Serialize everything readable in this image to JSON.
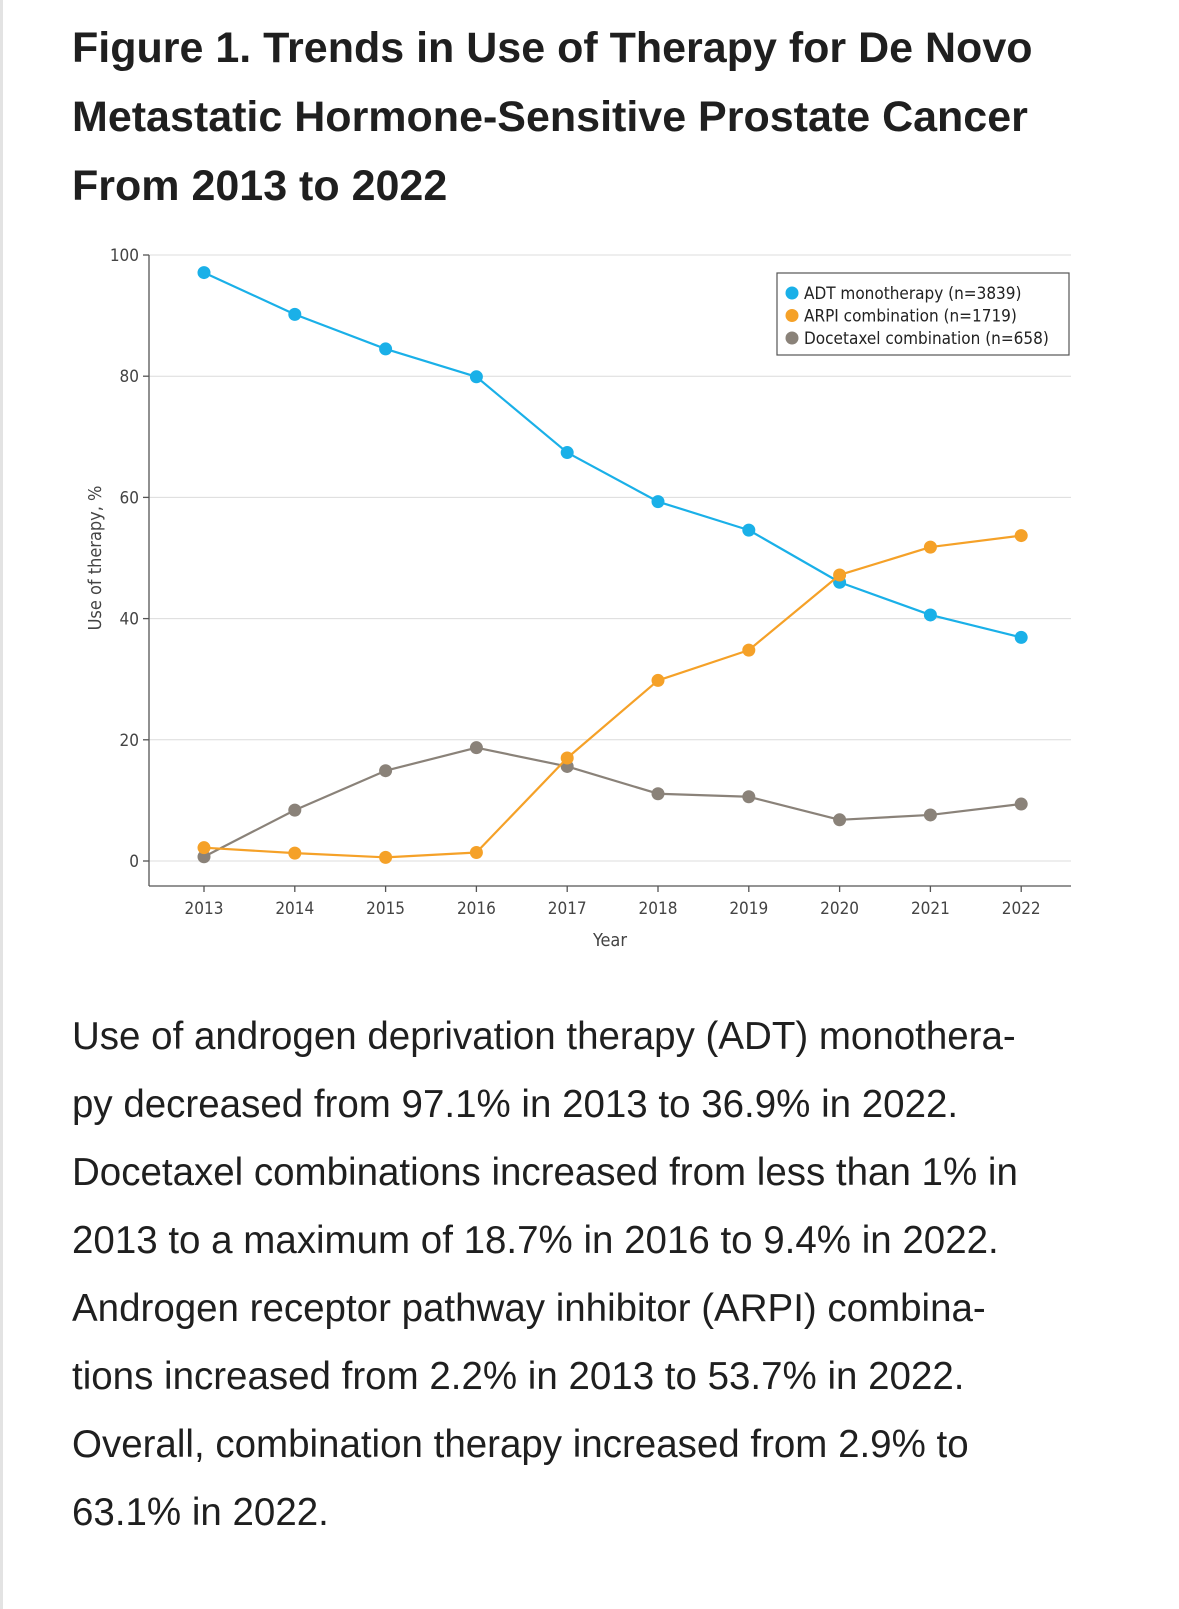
{
  "figure": {
    "title_lines": [
      "Figure 1.  Trends in Use of Therapy for De Novo",
      "Metastatic Hormone-Sensitive Prostate Cancer",
      "From 2013 to 2022"
    ],
    "caption_lines": [
      "Use of androgen deprivation therapy (ADT) monothera-",
      "py decreased from 97.1% in 2013 to 36.9% in 2022.",
      "Docetaxel combinations increased from less than 1% in",
      "2013 to a maximum of 18.7% in 2016 to 9.4% in 2022.",
      "Androgen receptor pathway inhibitor (ARPI) combina-",
      "tions increased from 2.2% in 2013 to 53.7% in 2022.",
      "Overall, combination therapy increased from 2.9% to",
      "63.1% in 2022."
    ]
  },
  "chart_data": {
    "type": "line",
    "title": "Trends in Use of Therapy for De Novo Metastatic Hormone-Sensitive Prostate Cancer From 2013 to 2022",
    "xlabel": "Year",
    "ylabel": "Use of therapy, %",
    "x": [
      "2013",
      "2014",
      "2015",
      "2016",
      "2017",
      "2018",
      "2019",
      "2020",
      "2021",
      "2022"
    ],
    "ylim": [
      0,
      100
    ],
    "yticks": [
      0,
      20,
      40,
      60,
      80,
      100
    ],
    "grid": true,
    "legend_position": "top-right",
    "series": [
      {
        "name": "ADT monotherapy (n=3839)",
        "color": "#1ab0e8",
        "values": [
          97.1,
          90.2,
          84.5,
          79.9,
          67.4,
          59.3,
          54.6,
          46.0,
          40.6,
          36.9
        ]
      },
      {
        "name": "ARPI combination (n=1719)",
        "color": "#f5a128",
        "values": [
          2.2,
          1.3,
          0.6,
          1.4,
          17.0,
          29.8,
          34.8,
          47.2,
          51.8,
          53.7
        ]
      },
      {
        "name": "Docetaxel combination (n=658)",
        "color": "#8a8279",
        "values": [
          0.7,
          8.4,
          14.9,
          18.7,
          15.6,
          11.1,
          10.6,
          6.8,
          7.6,
          9.4
        ]
      }
    ]
  }
}
